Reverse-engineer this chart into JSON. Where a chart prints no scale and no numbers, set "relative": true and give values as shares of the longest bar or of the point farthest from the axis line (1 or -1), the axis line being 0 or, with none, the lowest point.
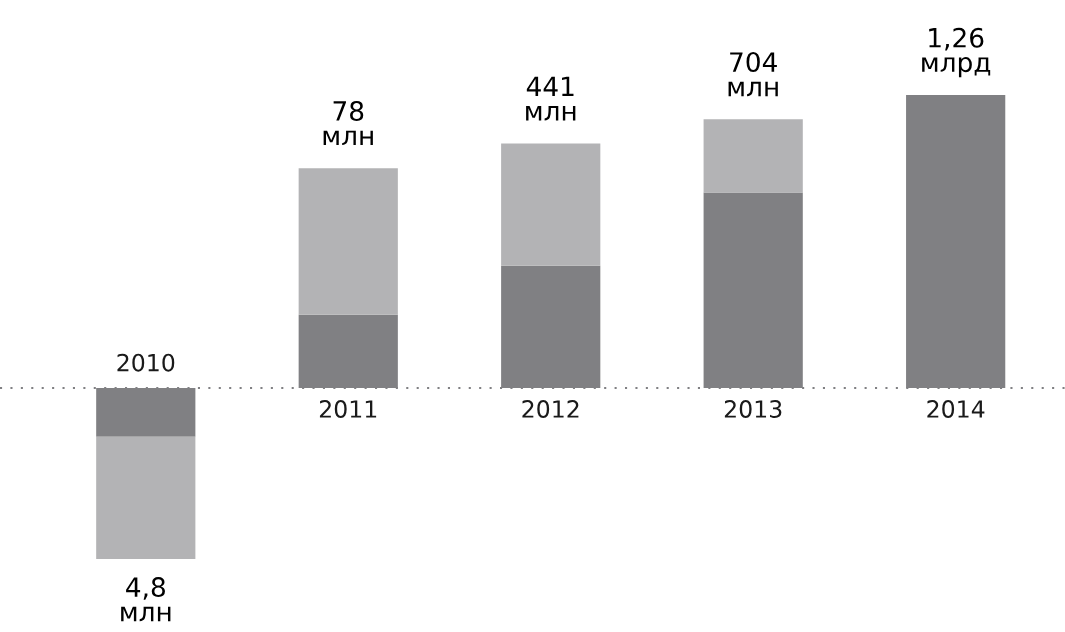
{
  "chart_data": {
    "type": "bar",
    "stacked": true,
    "relative": true,
    "tick_labels": "x",
    "categories": [
      "2010",
      "2011",
      "2012",
      "2013",
      "2014"
    ],
    "series": [
      {
        "color": "#808083",
        "values": [
          -0.167,
          0.25,
          0.417,
          0.667,
          1
        ]
      },
      {
        "color": "#b3b3b5",
        "values": [
          -0.417,
          0.5,
          0.417,
          0.25,
          0
        ]
      }
    ],
    "ref_lines": [
      {
        "axis": "y",
        "value": 0,
        "color": "#808083",
        "line_style": "dotted"
      }
    ],
    "annotations": [
      "4,8\nмлн",
      "78\nмлн",
      "441\nмлн",
      "704\nмлн",
      "1,26\nмлрд"
    ]
  }
}
